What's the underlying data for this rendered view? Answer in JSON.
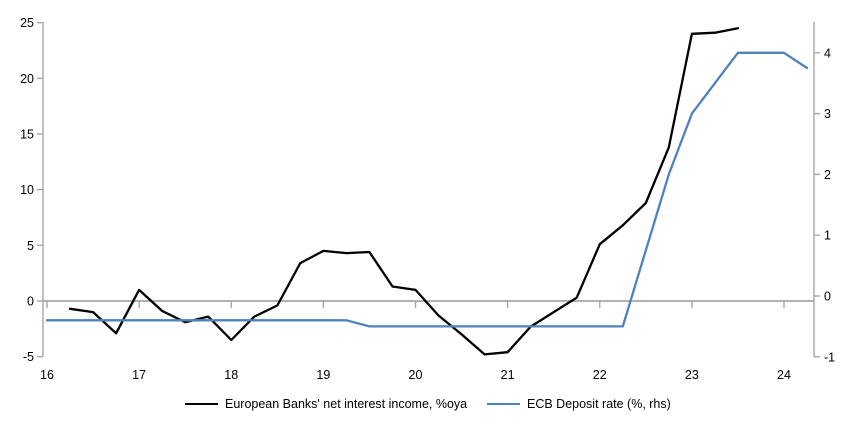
{
  "chart_data": {
    "type": "line",
    "title": "",
    "xlabel": "",
    "ylabel_left": "",
    "ylabel_right": "",
    "grid": false,
    "zero_line": true,
    "legend_position": "bottom",
    "x_axis": {
      "tick_labels": [
        16,
        17,
        18,
        19,
        20,
        21,
        22,
        23,
        24
      ],
      "range": [
        16,
        24.33
      ]
    },
    "left_axis": {
      "tick_labels": [
        25,
        20,
        15,
        10,
        5,
        0,
        -5
      ],
      "range": [
        -5,
        25
      ]
    },
    "right_axis": {
      "tick_labels": [
        4,
        3,
        2,
        1,
        0,
        -1
      ],
      "range": [
        -1,
        4.5
      ]
    },
    "series": [
      {
        "name": "European Banks' net interest income, %oya",
        "axis": "left",
        "color": "#000000",
        "x": [
          16.25,
          16.5,
          16.75,
          17.0,
          17.25,
          17.5,
          17.75,
          18.0,
          18.25,
          18.5,
          18.75,
          19.0,
          19.25,
          19.5,
          19.75,
          20.0,
          20.25,
          20.5,
          20.75,
          21.0,
          21.25,
          21.5,
          21.75,
          22.0,
          22.25,
          22.5,
          22.75,
          23.0,
          23.25,
          23.5
        ],
        "values": [
          -0.7,
          -1.0,
          -2.9,
          1.0,
          -0.9,
          -1.9,
          -1.4,
          -3.5,
          -1.4,
          -0.4,
          3.4,
          4.5,
          4.3,
          4.4,
          1.3,
          1.0,
          -1.3,
          -3.0,
          -4.8,
          -4.6,
          -2.3,
          -1.0,
          0.3,
          5.1,
          6.8,
          8.8,
          13.8,
          24.0,
          24.1,
          24.5
        ]
      },
      {
        "name": "ECB Deposit rate (%, rhs)",
        "axis": "right",
        "color": "#4F81BD",
        "x": [
          16.0,
          16.25,
          16.5,
          16.75,
          17.0,
          17.25,
          17.5,
          17.75,
          18.0,
          18.25,
          18.5,
          18.75,
          19.0,
          19.25,
          19.5,
          19.75,
          20.0,
          20.25,
          20.5,
          20.75,
          21.0,
          21.25,
          21.5,
          21.75,
          22.0,
          22.25,
          22.5,
          22.75,
          23.0,
          23.25,
          23.5,
          23.75,
          24.0,
          24.25
        ],
        "values": [
          -0.4,
          -0.4,
          -0.4,
          -0.4,
          -0.4,
          -0.4,
          -0.4,
          -0.4,
          -0.4,
          -0.4,
          -0.4,
          -0.4,
          -0.4,
          -0.4,
          -0.5,
          -0.5,
          -0.5,
          -0.5,
          -0.5,
          -0.5,
          -0.5,
          -0.5,
          -0.5,
          -0.5,
          -0.5,
          -0.5,
          0.75,
          2.0,
          3.0,
          3.5,
          4.0,
          4.0,
          4.0,
          3.75
        ]
      }
    ]
  },
  "colors": {
    "axis_line": "#A6A6A6",
    "zero_line": "#A6A6A6",
    "text": "#000000",
    "background": "#FFFFFF"
  }
}
